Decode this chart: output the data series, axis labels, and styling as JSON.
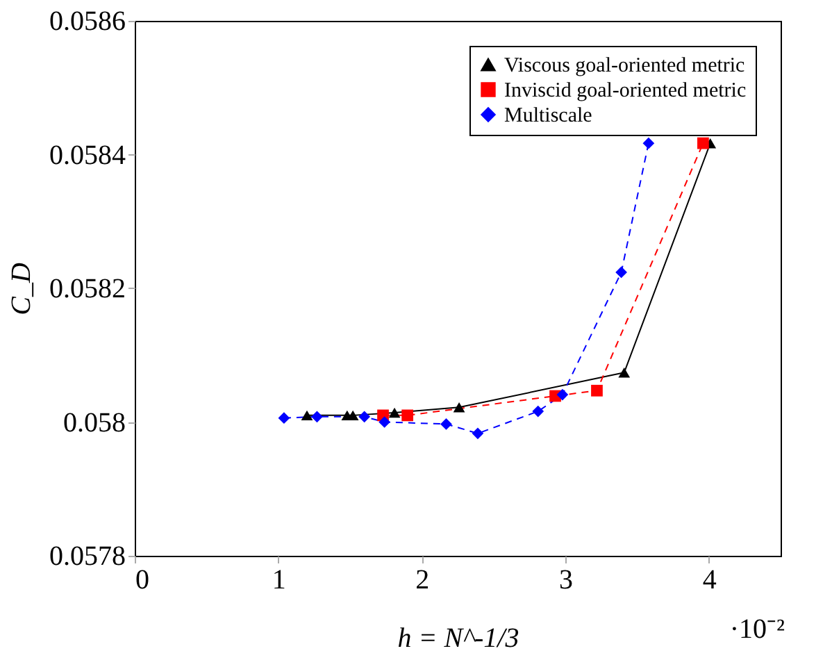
{
  "chart_data": {
    "type": "line",
    "xlabel": "h = N^-1/3",
    "ylabel": "C_D",
    "annotations": [
      "·10⁻²"
    ],
    "xlim": [
      0,
      4.5
    ],
    "xticks": [
      0,
      1,
      2,
      3,
      4
    ],
    "ylim": [
      0.0578,
      0.0586
    ],
    "yticks": [
      0.0578,
      0.058,
      0.0582,
      0.0584,
      0.0586
    ],
    "legend": "top right",
    "grid": false,
    "series": [
      {
        "name": "Viscous goal-oriented metric",
        "color": "#000000",
        "marker": "triangle",
        "line_style": "solid",
        "x": [
          1.2,
          1.48,
          1.52,
          1.81,
          2.26,
          3.41,
          4.01
        ],
        "values": [
          0.05801,
          0.05801,
          0.05801,
          0.058014,
          0.058022,
          0.058074,
          0.058417
        ]
      },
      {
        "name": "Inviscid goal-oriented metric",
        "color": "#ff0000",
        "marker": "square",
        "line_style": "dashed",
        "x": [
          1.73,
          1.9,
          2.93,
          3.22,
          3.96
        ],
        "values": [
          0.05801,
          0.05801,
          0.058039,
          0.058047,
          0.058417
        ]
      },
      {
        "name": "Multiscale",
        "color": "#0000ff",
        "marker": "diamond",
        "line_style": "dashed",
        "x": [
          1.04,
          1.27,
          1.6,
          1.74,
          2.17,
          2.39,
          2.81,
          2.98,
          3.39,
          3.58
        ],
        "values": [
          0.058006,
          0.058008,
          0.058008,
          0.058,
          0.057997,
          0.057983,
          0.058016,
          0.058041,
          0.058224,
          0.058417
        ]
      }
    ]
  }
}
